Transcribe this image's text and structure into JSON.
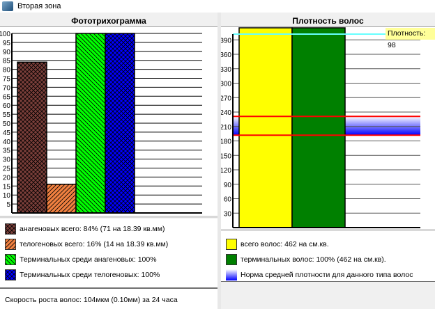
{
  "window": {
    "title": "Вторая зона"
  },
  "left": {
    "title": "Фототрихограмма",
    "legend": [
      {
        "label": "анагеновых всего: 84% (71 на 18.39 кв.мм)",
        "color": "#7b3f3a",
        "pattern": "crosshatch"
      },
      {
        "label": "телогеновых всего: 16% (14 на 18.39 кв.мм)",
        "color": "#f08040",
        "pattern": "diagonal"
      },
      {
        "label": "Терминальных среди анагеновых: 100%",
        "color": "#00ff00",
        "pattern": "back-diagonal"
      },
      {
        "label": "Терминальных среди телогеновых: 100%",
        "color": "#0000ff",
        "pattern": "crosshatch"
      }
    ],
    "footer": "Скорость роста волос: 104мкм (0.10мм) за 24 часа"
  },
  "right": {
    "title": "Плотность волос",
    "tooltip": "Плотность: 98",
    "legend": [
      {
        "label": "всего волос: 462 на см.кв.",
        "color": "#ffff00"
      },
      {
        "label": "терминальных волос: 100% (462 на см.кв).",
        "color": "#008000"
      },
      {
        "label": "Норма средней плотности для данного типа волос",
        "color": "#0000ff"
      }
    ]
  },
  "chart_data": [
    {
      "type": "bar",
      "title": "Фототрихограмма",
      "ylim": [
        0,
        100
      ],
      "yticks": [
        5,
        10,
        15,
        20,
        25,
        30,
        35,
        40,
        45,
        50,
        55,
        60,
        65,
        70,
        75,
        80,
        85,
        90,
        95,
        100
      ],
      "grid": true,
      "series": [
        {
          "name": "анагеновых всего",
          "value": 84,
          "color": "#7b3f3a",
          "pattern": "crosshatch"
        },
        {
          "name": "телогеновых всего",
          "value": 16,
          "color": "#f08040",
          "pattern": "diagonal"
        },
        {
          "name": "Терминальных среди анагеновых",
          "value": 100,
          "color": "#00ff00",
          "pattern": "back-diagonal"
        },
        {
          "name": "Терминальных среди телогеновых",
          "value": 100,
          "color": "#0000ff",
          "pattern": "crosshatch"
        }
      ]
    },
    {
      "type": "bar",
      "title": "Плотность волос",
      "ylim": [
        0,
        410
      ],
      "yticks": [
        30,
        60,
        90,
        120,
        150,
        180,
        210,
        240,
        270,
        300,
        330,
        360,
        390
      ],
      "grid": true,
      "series": [
        {
          "name": "всего волос",
          "value": 462,
          "color": "#ffff00"
        },
        {
          "name": "терминальных волос",
          "value": 462,
          "color": "#008000"
        }
      ],
      "norm_band": [
        192,
        231
      ],
      "cursor_value": 402
    }
  ]
}
